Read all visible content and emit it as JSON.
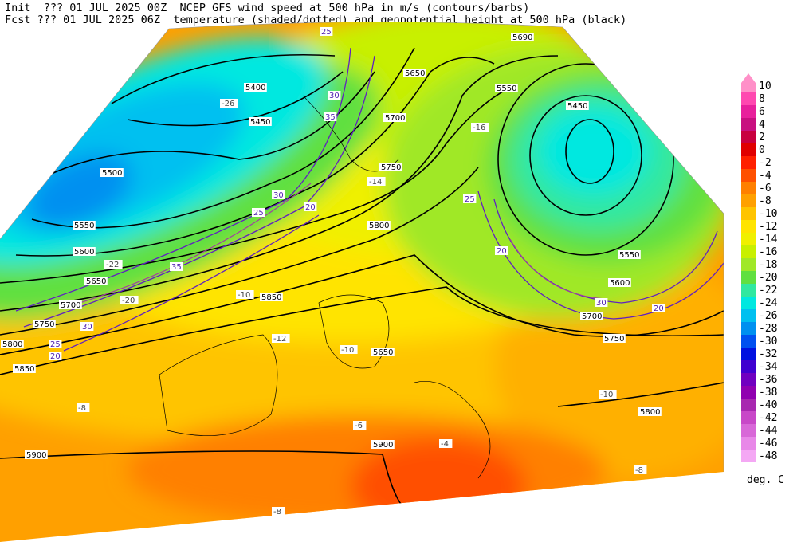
{
  "header": {
    "line1": "Init  ??? 01 JUL 2025 00Z  NCEP GFS wind speed at 500 hPa in m/s (contours/barbs)",
    "line2": "Fcst ??? 01 JUL 2025 06Z  temperature (shaded/dotted) and geopotential height at 500 hPa (black)"
  },
  "colorbar": {
    "labels": [
      10,
      8,
      6,
      4,
      2,
      0,
      -2,
      -4,
      -6,
      -8,
      -10,
      -12,
      -14,
      -16,
      -18,
      -20,
      -22,
      -24,
      -26,
      -28,
      -30,
      -32,
      -34,
      -36,
      -38,
      -40,
      -42,
      -44,
      -46,
      -48
    ],
    "colors": [
      "#ff90c8",
      "#ff48b0",
      "#e8209c",
      "#c81080",
      "#c80040",
      "#e00000",
      "#ff2000",
      "#ff5000",
      "#ff8000",
      "#ffa000",
      "#ffc400",
      "#ffe400",
      "#f0f000",
      "#c8f000",
      "#a0e828",
      "#60e040",
      "#30e8a0",
      "#00e8e0",
      "#00c0f0",
      "#0090f0",
      "#0050f0",
      "#0010e0",
      "#4000d0",
      "#7000c0",
      "#9000b0",
      "#a828b0",
      "#c848c8",
      "#d868d8",
      "#e888e8",
      "#f4a8f4"
    ],
    "unit": "deg. C"
  },
  "map": {
    "height_labels": [
      "5400",
      "5450",
      "5500",
      "5550",
      "5600",
      "5650",
      "5700",
      "5750",
      "5800",
      "5850",
      "5900",
      "5650",
      "5700",
      "5750",
      "5800",
      "5850",
      "5550",
      "5550",
      "5600",
      "5700",
      "5750",
      "5800",
      "5900",
      "5650",
      "5690",
      "5450"
    ],
    "temp_labels": [
      "-26",
      "-22",
      "-20",
      "-14",
      "-16",
      "-12",
      "-10",
      "-10",
      "-8",
      "-8",
      "-6",
      "-4",
      "-8",
      "-10"
    ],
    "wind_labels": [
      "25",
      "30",
      "35",
      "20",
      "25",
      "30",
      "35",
      "20",
      "25",
      "30",
      "20",
      "25",
      "30",
      "20"
    ]
  }
}
